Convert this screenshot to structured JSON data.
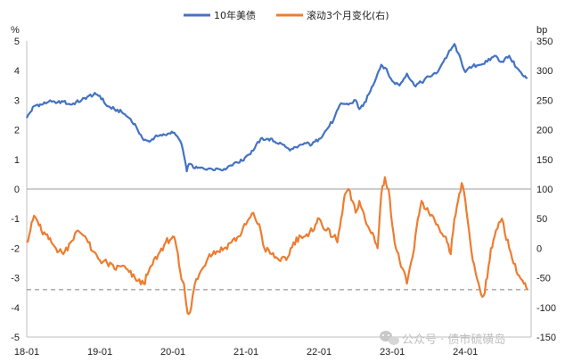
{
  "chart_data": {
    "type": "line",
    "left_unit": "%",
    "right_unit": "bp",
    "left_ylim": [
      -5,
      5
    ],
    "right_ylim": [
      -150,
      350
    ],
    "left_ticks": [
      "5",
      "4",
      "3",
      "2",
      "1",
      "0",
      "-1",
      "-2",
      "-3",
      "-4",
      "-5"
    ],
    "right_ticks": [
      "350",
      "300",
      "250",
      "200",
      "150",
      "100",
      "50",
      "0",
      "-50",
      "-100",
      "-150"
    ],
    "x_ticks": [
      "18-01",
      "19-01",
      "20-01",
      "21-01",
      "22-01",
      "23-01",
      "24-01"
    ],
    "x_domain": [
      2018.0,
      2024.9
    ],
    "zero_line_left": 0,
    "reference_line_left": -3.4,
    "legend_position": "top-center",
    "series": [
      {
        "name": "10年美债",
        "axis": "left",
        "color": "#4472c4",
        "x": [
          2018.0,
          2018.05,
          2018.1,
          2018.15,
          2018.2,
          2018.3,
          2018.4,
          2018.5,
          2018.6,
          2018.75,
          2018.85,
          2018.95,
          2019.0,
          2019.1,
          2019.2,
          2019.3,
          2019.4,
          2019.5,
          2019.6,
          2019.68,
          2019.75,
          2019.85,
          2019.95,
          2020.0,
          2020.08,
          2020.12,
          2020.17,
          2020.19,
          2020.22,
          2020.3,
          2020.5,
          2020.7,
          2020.85,
          2020.95,
          2021.0,
          2021.1,
          2021.2,
          2021.3,
          2021.5,
          2021.6,
          2021.7,
          2021.8,
          2021.9,
          2022.0,
          2022.1,
          2022.2,
          2022.3,
          2022.4,
          2022.5,
          2022.55,
          2022.6,
          2022.7,
          2022.8,
          2022.85,
          2022.9,
          2023.0,
          2023.1,
          2023.2,
          2023.3,
          2023.4,
          2023.5,
          2023.6,
          2023.7,
          2023.8,
          2023.85,
          2023.9,
          2024.0,
          2024.1,
          2024.2,
          2024.3,
          2024.4,
          2024.5,
          2024.6,
          2024.7,
          2024.8,
          2024.85
        ],
        "values": [
          2.4,
          2.6,
          2.8,
          2.85,
          2.85,
          2.95,
          2.9,
          2.95,
          2.85,
          3.0,
          3.15,
          3.2,
          3.15,
          2.8,
          2.7,
          2.6,
          2.4,
          2.1,
          1.65,
          1.6,
          1.75,
          1.8,
          1.88,
          1.9,
          1.7,
          1.5,
          0.9,
          0.6,
          0.85,
          0.7,
          0.7,
          0.68,
          0.9,
          0.95,
          1.1,
          1.3,
          1.7,
          1.7,
          1.5,
          1.3,
          1.4,
          1.55,
          1.5,
          1.7,
          2.0,
          2.35,
          2.9,
          2.85,
          3.0,
          2.7,
          2.8,
          3.3,
          3.9,
          4.2,
          4.1,
          3.65,
          3.5,
          3.9,
          3.5,
          3.6,
          3.8,
          3.9,
          4.3,
          4.7,
          4.9,
          4.6,
          3.95,
          4.15,
          4.2,
          4.3,
          4.5,
          4.3,
          4.5,
          4.1,
          3.8,
          3.75
        ]
      },
      {
        "name": "滚动3个月变化(右)",
        "axis": "right",
        "color": "#ed7d31",
        "x": [
          2018.0,
          2018.05,
          2018.1,
          2018.15,
          2018.2,
          2018.3,
          2018.4,
          2018.5,
          2018.6,
          2018.7,
          2018.8,
          2018.9,
          2019.0,
          2019.1,
          2019.2,
          2019.3,
          2019.4,
          2019.5,
          2019.6,
          2019.65,
          2019.7,
          2019.8,
          2019.9,
          2020.0,
          2020.05,
          2020.1,
          2020.15,
          2020.2,
          2020.25,
          2020.3,
          2020.4,
          2020.5,
          2020.6,
          2020.7,
          2020.8,
          2020.9,
          2021.0,
          2021.1,
          2021.2,
          2021.25,
          2021.35,
          2021.45,
          2021.55,
          2021.65,
          2021.75,
          2021.85,
          2021.95,
          2022.0,
          2022.1,
          2022.2,
          2022.25,
          2022.3,
          2022.35,
          2022.4,
          2022.5,
          2022.55,
          2022.65,
          2022.75,
          2022.8,
          2022.85,
          2022.9,
          2022.95,
          2023.0,
          2023.05,
          2023.1,
          2023.2,
          2023.3,
          2023.35,
          2023.4,
          2023.5,
          2023.6,
          2023.7,
          2023.75,
          2023.8,
          2023.85,
          2023.9,
          2023.95,
          2024.0,
          2024.05,
          2024.1,
          2024.2,
          2024.25,
          2024.3,
          2024.35,
          2024.4,
          2024.5,
          2024.6,
          2024.7,
          2024.75,
          2024.8,
          2024.85
        ],
        "values": [
          10,
          30,
          55,
          45,
          30,
          15,
          0,
          -10,
          10,
          30,
          20,
          -5,
          -20,
          -25,
          -35,
          -30,
          -40,
          -55,
          -60,
          -45,
          -30,
          -10,
          10,
          20,
          0,
          -40,
          -60,
          -110,
          -100,
          -60,
          -35,
          -10,
          -5,
          0,
          10,
          20,
          40,
          60,
          30,
          0,
          -10,
          -20,
          -20,
          10,
          20,
          20,
          40,
          50,
          30,
          20,
          10,
          50,
          90,
          100,
          60,
          80,
          40,
          20,
          0,
          90,
          120,
          100,
          40,
          0,
          -20,
          -60,
          0,
          50,
          80,
          60,
          40,
          20,
          10,
          -10,
          50,
          80,
          110,
          80,
          30,
          -20,
          -70,
          -80,
          -50,
          0,
          20,
          50,
          0,
          -40,
          -50,
          -60,
          -70
        ]
      }
    ]
  },
  "watermark": {
    "text": "公众号 · 债市硫磺岛",
    "icon": "wechat-icon"
  }
}
